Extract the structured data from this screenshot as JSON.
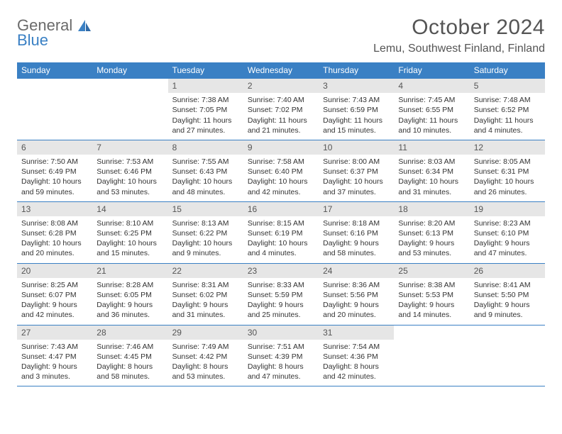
{
  "logo": {
    "top": "General",
    "bottom": "Blue"
  },
  "title": "October 2024",
  "location": "Lemu, Southwest Finland, Finland",
  "colors": {
    "header_bar": "#3a80c4",
    "daynum_bg": "#e6e6e6",
    "rule": "#3a80c4",
    "page_bg": "#ffffff",
    "title_text": "#555555",
    "body_text": "#333333"
  },
  "table": {
    "type": "calendar",
    "day_headers": [
      "Sunday",
      "Monday",
      "Tuesday",
      "Wednesday",
      "Thursday",
      "Friday",
      "Saturday"
    ],
    "cell_fontsize": 10.5,
    "header_fontsize": 12,
    "weeks": [
      [
        null,
        null,
        {
          "n": "1",
          "sunrise": "Sunrise: 7:38 AM",
          "sunset": "Sunset: 7:05 PM",
          "day1": "Daylight: 11 hours",
          "day2": "and 27 minutes."
        },
        {
          "n": "2",
          "sunrise": "Sunrise: 7:40 AM",
          "sunset": "Sunset: 7:02 PM",
          "day1": "Daylight: 11 hours",
          "day2": "and 21 minutes."
        },
        {
          "n": "3",
          "sunrise": "Sunrise: 7:43 AM",
          "sunset": "Sunset: 6:59 PM",
          "day1": "Daylight: 11 hours",
          "day2": "and 15 minutes."
        },
        {
          "n": "4",
          "sunrise": "Sunrise: 7:45 AM",
          "sunset": "Sunset: 6:55 PM",
          "day1": "Daylight: 11 hours",
          "day2": "and 10 minutes."
        },
        {
          "n": "5",
          "sunrise": "Sunrise: 7:48 AM",
          "sunset": "Sunset: 6:52 PM",
          "day1": "Daylight: 11 hours",
          "day2": "and 4 minutes."
        }
      ],
      [
        {
          "n": "6",
          "sunrise": "Sunrise: 7:50 AM",
          "sunset": "Sunset: 6:49 PM",
          "day1": "Daylight: 10 hours",
          "day2": "and 59 minutes."
        },
        {
          "n": "7",
          "sunrise": "Sunrise: 7:53 AM",
          "sunset": "Sunset: 6:46 PM",
          "day1": "Daylight: 10 hours",
          "day2": "and 53 minutes."
        },
        {
          "n": "8",
          "sunrise": "Sunrise: 7:55 AM",
          "sunset": "Sunset: 6:43 PM",
          "day1": "Daylight: 10 hours",
          "day2": "and 48 minutes."
        },
        {
          "n": "9",
          "sunrise": "Sunrise: 7:58 AM",
          "sunset": "Sunset: 6:40 PM",
          "day1": "Daylight: 10 hours",
          "day2": "and 42 minutes."
        },
        {
          "n": "10",
          "sunrise": "Sunrise: 8:00 AM",
          "sunset": "Sunset: 6:37 PM",
          "day1": "Daylight: 10 hours",
          "day2": "and 37 minutes."
        },
        {
          "n": "11",
          "sunrise": "Sunrise: 8:03 AM",
          "sunset": "Sunset: 6:34 PM",
          "day1": "Daylight: 10 hours",
          "day2": "and 31 minutes."
        },
        {
          "n": "12",
          "sunrise": "Sunrise: 8:05 AM",
          "sunset": "Sunset: 6:31 PM",
          "day1": "Daylight: 10 hours",
          "day2": "and 26 minutes."
        }
      ],
      [
        {
          "n": "13",
          "sunrise": "Sunrise: 8:08 AM",
          "sunset": "Sunset: 6:28 PM",
          "day1": "Daylight: 10 hours",
          "day2": "and 20 minutes."
        },
        {
          "n": "14",
          "sunrise": "Sunrise: 8:10 AM",
          "sunset": "Sunset: 6:25 PM",
          "day1": "Daylight: 10 hours",
          "day2": "and 15 minutes."
        },
        {
          "n": "15",
          "sunrise": "Sunrise: 8:13 AM",
          "sunset": "Sunset: 6:22 PM",
          "day1": "Daylight: 10 hours",
          "day2": "and 9 minutes."
        },
        {
          "n": "16",
          "sunrise": "Sunrise: 8:15 AM",
          "sunset": "Sunset: 6:19 PM",
          "day1": "Daylight: 10 hours",
          "day2": "and 4 minutes."
        },
        {
          "n": "17",
          "sunrise": "Sunrise: 8:18 AM",
          "sunset": "Sunset: 6:16 PM",
          "day1": "Daylight: 9 hours",
          "day2": "and 58 minutes."
        },
        {
          "n": "18",
          "sunrise": "Sunrise: 8:20 AM",
          "sunset": "Sunset: 6:13 PM",
          "day1": "Daylight: 9 hours",
          "day2": "and 53 minutes."
        },
        {
          "n": "19",
          "sunrise": "Sunrise: 8:23 AM",
          "sunset": "Sunset: 6:10 PM",
          "day1": "Daylight: 9 hours",
          "day2": "and 47 minutes."
        }
      ],
      [
        {
          "n": "20",
          "sunrise": "Sunrise: 8:25 AM",
          "sunset": "Sunset: 6:07 PM",
          "day1": "Daylight: 9 hours",
          "day2": "and 42 minutes."
        },
        {
          "n": "21",
          "sunrise": "Sunrise: 8:28 AM",
          "sunset": "Sunset: 6:05 PM",
          "day1": "Daylight: 9 hours",
          "day2": "and 36 minutes."
        },
        {
          "n": "22",
          "sunrise": "Sunrise: 8:31 AM",
          "sunset": "Sunset: 6:02 PM",
          "day1": "Daylight: 9 hours",
          "day2": "and 31 minutes."
        },
        {
          "n": "23",
          "sunrise": "Sunrise: 8:33 AM",
          "sunset": "Sunset: 5:59 PM",
          "day1": "Daylight: 9 hours",
          "day2": "and 25 minutes."
        },
        {
          "n": "24",
          "sunrise": "Sunrise: 8:36 AM",
          "sunset": "Sunset: 5:56 PM",
          "day1": "Daylight: 9 hours",
          "day2": "and 20 minutes."
        },
        {
          "n": "25",
          "sunrise": "Sunrise: 8:38 AM",
          "sunset": "Sunset: 5:53 PM",
          "day1": "Daylight: 9 hours",
          "day2": "and 14 minutes."
        },
        {
          "n": "26",
          "sunrise": "Sunrise: 8:41 AM",
          "sunset": "Sunset: 5:50 PM",
          "day1": "Daylight: 9 hours",
          "day2": "and 9 minutes."
        }
      ],
      [
        {
          "n": "27",
          "sunrise": "Sunrise: 7:43 AM",
          "sunset": "Sunset: 4:47 PM",
          "day1": "Daylight: 9 hours",
          "day2": "and 3 minutes."
        },
        {
          "n": "28",
          "sunrise": "Sunrise: 7:46 AM",
          "sunset": "Sunset: 4:45 PM",
          "day1": "Daylight: 8 hours",
          "day2": "and 58 minutes."
        },
        {
          "n": "29",
          "sunrise": "Sunrise: 7:49 AM",
          "sunset": "Sunset: 4:42 PM",
          "day1": "Daylight: 8 hours",
          "day2": "and 53 minutes."
        },
        {
          "n": "30",
          "sunrise": "Sunrise: 7:51 AM",
          "sunset": "Sunset: 4:39 PM",
          "day1": "Daylight: 8 hours",
          "day2": "and 47 minutes."
        },
        {
          "n": "31",
          "sunrise": "Sunrise: 7:54 AM",
          "sunset": "Sunset: 4:36 PM",
          "day1": "Daylight: 8 hours",
          "day2": "and 42 minutes."
        },
        null,
        null
      ]
    ]
  }
}
